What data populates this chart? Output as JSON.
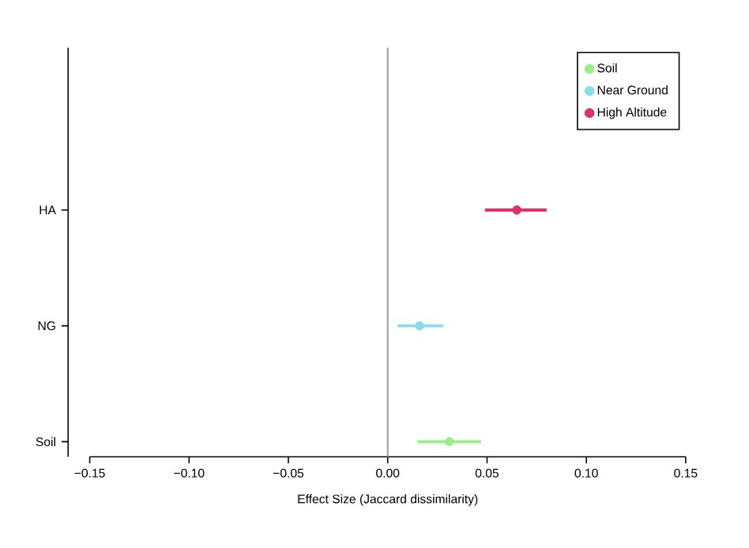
{
  "chart_data": {
    "type": "scatter",
    "orientation": "horizontal",
    "xlabel": "Effect Size (Jaccard dissimilarity)",
    "categories": [
      "HA",
      "NG",
      "Soil"
    ],
    "series": [
      {
        "name": "Soil",
        "color": "#99ee88",
        "values": [
          null,
          null,
          0.031
        ],
        "errors": [
          null,
          null,
          [
            0.015,
            0.047
          ]
        ]
      },
      {
        "name": "Near Ground",
        "color": "#88dde8",
        "values": [
          null,
          0.016,
          null
        ],
        "errors": [
          null,
          [
            0.005,
            0.028
          ],
          null
        ]
      },
      {
        "name": "High Altitude",
        "color": "#dd3366",
        "values": [
          0.065,
          null,
          null
        ],
        "errors": [
          [
            0.049,
            0.08
          ],
          null,
          null
        ]
      }
    ],
    "xlim": [
      -0.15,
      0.15
    ],
    "xticks": [
      {
        "value": -0.15,
        "label": "−0.15"
      },
      {
        "value": -0.1,
        "label": "−0.10"
      },
      {
        "value": -0.05,
        "label": "−0.05"
      },
      {
        "value": 0,
        "label": "0.00"
      },
      {
        "value": 0.05,
        "label": "0.05"
      },
      {
        "value": 0.1,
        "label": "0.10"
      },
      {
        "value": 0.15,
        "label": "0.15"
      }
    ],
    "ref_lines": [
      {
        "axis": "x",
        "value": 0,
        "color": "#aaaaaa"
      }
    ],
    "legend": "top right",
    "grid": false
  }
}
